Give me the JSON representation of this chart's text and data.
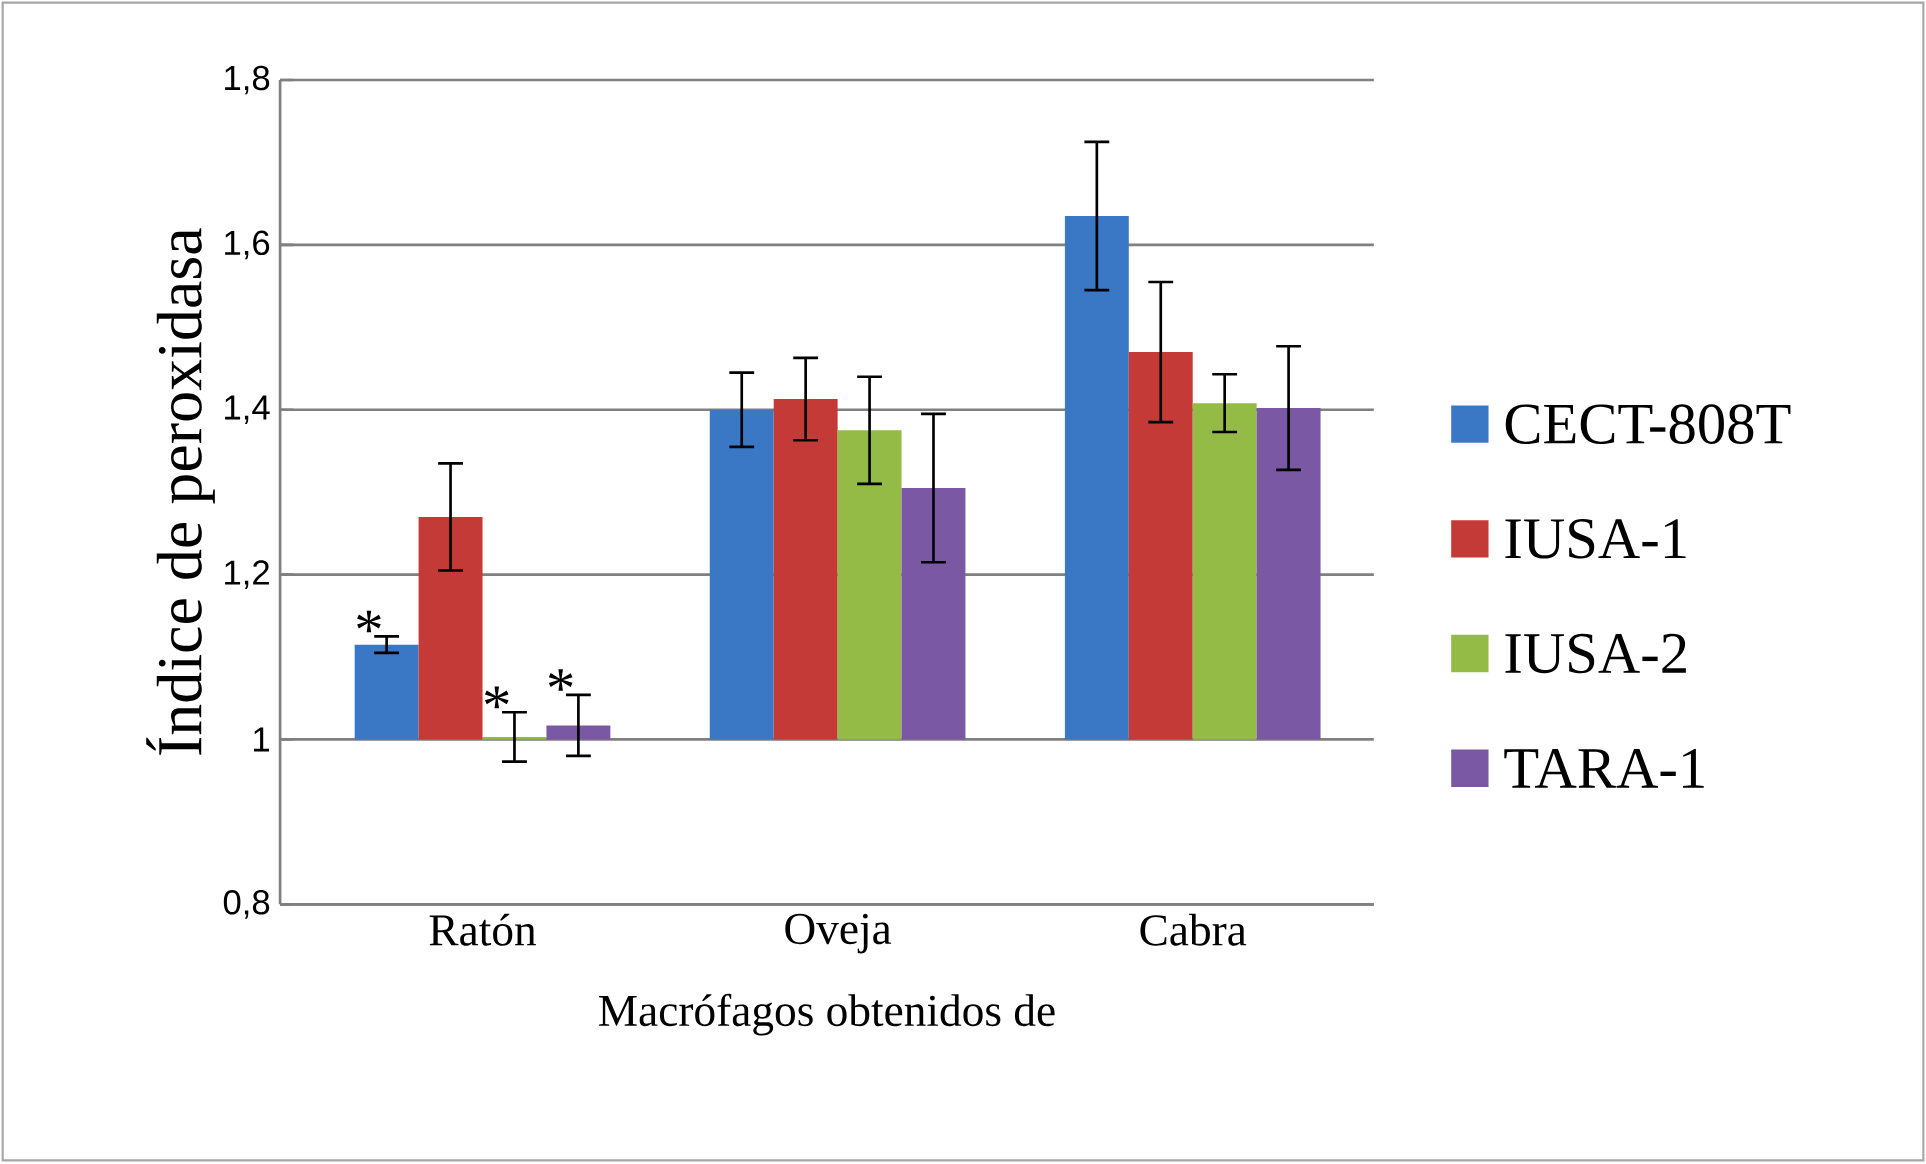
{
  "chart_data": {
    "type": "bar",
    "xlabel": "Macrófagos obtenidos de",
    "ylabel": "Índice de peroxidasa",
    "categories": [
      "Ratón",
      "Oveja",
      "Cabra"
    ],
    "ylim": [
      0.8,
      1.8
    ],
    "yticks": [
      {
        "value": 0.8,
        "label": "0,8"
      },
      1,
      {
        "value": 1.2,
        "label": "1,2"
      },
      {
        "value": 1.4,
        "label": "1,4"
      },
      {
        "value": 1.6,
        "label": "1,6"
      },
      {
        "value": 1.8,
        "label": "1,8"
      }
    ],
    "grid": "y",
    "legend": "right",
    "series": [
      {
        "name": "CECT-808T",
        "color": "#3a78c6",
        "base": [
          1,
          1,
          1
        ],
        "values": [
          0.115,
          0.4,
          0.635
        ],
        "errors": [
          0.01,
          0.045,
          0.09
        ],
        "value_labels": [
          "*",
          null,
          null
        ]
      },
      {
        "name": "IUSA-1",
        "color": "#c43a36",
        "base": [
          1,
          1,
          1
        ],
        "values": [
          0.27,
          0.413,
          0.47
        ],
        "errors": [
          0.065,
          0.05,
          0.085
        ]
      },
      {
        "name": "IUSA-2",
        "color": "#93bb45",
        "base": [
          1,
          1,
          1
        ],
        "values": [
          0.003,
          0.375,
          0.408
        ],
        "errors": [
          0.03,
          0.065,
          0.035
        ],
        "value_labels": [
          "*",
          null,
          null
        ]
      },
      {
        "name": "TARA-1",
        "color": "#7b58a3",
        "base": [
          1,
          1,
          1
        ],
        "values": [
          0.017,
          0.305,
          0.402
        ],
        "errors": [
          0.037,
          0.09,
          0.075
        ],
        "value_labels": [
          "*",
          null,
          null
        ]
      }
    ]
  }
}
